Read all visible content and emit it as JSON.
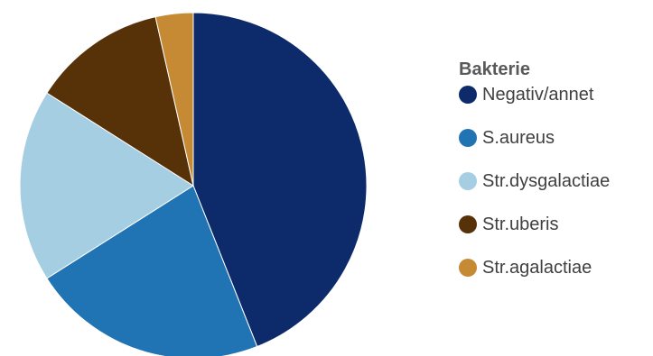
{
  "chart_data": {
    "type": "pie",
    "legend_title": "Bakterie",
    "legend_position": "right",
    "start_angle_deg": 0,
    "direction": "clockwise",
    "slices": [
      {
        "label": "Negativ/annet",
        "value": 44,
        "color": "#0d2a6b"
      },
      {
        "label": "S.aureus",
        "value": 22,
        "color": "#2174b4"
      },
      {
        "label": "Str.dysgalactiae",
        "value": 18,
        "color": "#a6cee2"
      },
      {
        "label": "Str.uberis",
        "value": 12.5,
        "color": "#573209"
      },
      {
        "label": "Str.agalactiae",
        "value": 3.5,
        "color": "#c68a35"
      }
    ]
  }
}
